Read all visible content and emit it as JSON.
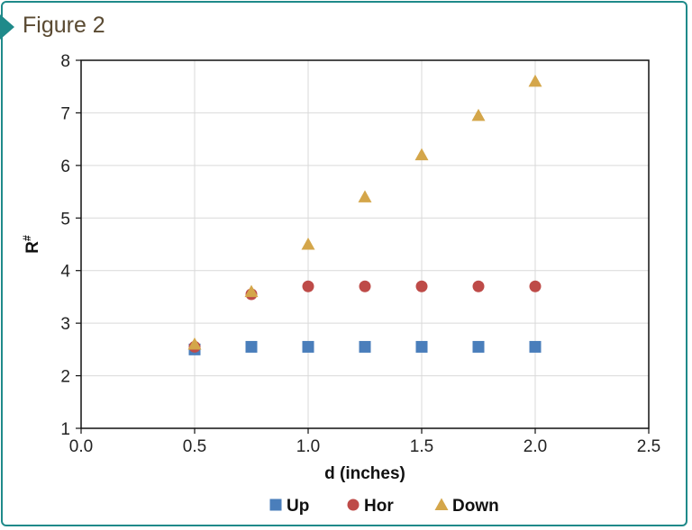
{
  "figure": {
    "title": "Figure 2"
  },
  "chart_data": {
    "type": "scatter",
    "xlabel": "d (inches)",
    "ylabel": "R#",
    "xlim": [
      0.0,
      2.5
    ],
    "ylim": [
      1,
      8
    ],
    "x_ticks": [
      "0.0",
      "0.5",
      "1.0",
      "1.5",
      "2.0",
      "2.5"
    ],
    "y_ticks": [
      "1",
      "2",
      "3",
      "4",
      "5",
      "6",
      "7",
      "8"
    ],
    "grid": true,
    "legend_position": "bottom",
    "series": [
      {
        "name": "Up",
        "marker": "square",
        "color": "#4a7ebb",
        "x": [
          0.5,
          0.75,
          1.0,
          1.25,
          1.5,
          1.75,
          2.0
        ],
        "y": [
          2.5,
          2.55,
          2.55,
          2.55,
          2.55,
          2.55,
          2.55
        ]
      },
      {
        "name": "Hor",
        "marker": "circle",
        "color": "#be4b48",
        "x": [
          0.5,
          0.75,
          1.0,
          1.25,
          1.5,
          1.75,
          2.0
        ],
        "y": [
          2.55,
          3.55,
          3.7,
          3.7,
          3.7,
          3.7,
          3.7
        ]
      },
      {
        "name": "Down",
        "marker": "triangle",
        "color": "#d4a64a",
        "x": [
          0.5,
          0.75,
          1.0,
          1.25,
          1.5,
          1.75,
          2.0
        ],
        "y": [
          2.6,
          3.6,
          4.5,
          5.4,
          6.2,
          6.95,
          7.6
        ]
      }
    ]
  }
}
